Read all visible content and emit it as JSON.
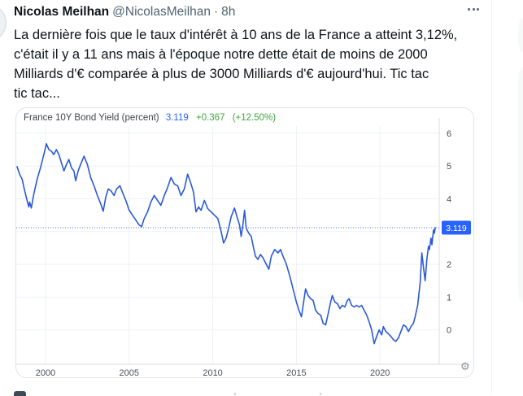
{
  "tweet": {
    "author": "Nicolas Meilhan",
    "handle": "@NicolasMeilhan",
    "separator": "·",
    "time": "8h",
    "text_lines": [
      "La dernière fois que le taux d'intérêt à 10 ans de la France a atteint 3,12%,",
      "c'était il y a 11 ans mais à l'époque notre dette était de moins de 2000",
      "Milliards d'€ comparée à plus de 3000 Milliards d'€ aujourd'hui. Tic tac",
      "tic tac..."
    ],
    "icons": {
      "more": "more-options-dots",
      "avatar": "partial-avatar-circle"
    }
  },
  "chart": {
    "header": {
      "title": "France 10Y Bond Yield (percent)",
      "value": "3.119",
      "change": "+0.367",
      "change_pct": "(+12.50%)"
    },
    "badge_label": "3.119",
    "gear_icon": "⚙",
    "colors": {
      "line": "#2b59d8",
      "value_text": "#2962ff",
      "change_text": "#3fa33f",
      "badge_bg": "#2962ff",
      "badge_text": "#ffffff",
      "grid": "#eef1f6",
      "boundary": "#d9dee5",
      "tick_text": "#4b4f57",
      "dotted": "#2962ff"
    }
  },
  "chart_data": {
    "type": "line",
    "title": "France 10Y Bond Yield (percent)",
    "ylabel": "percent",
    "legend": false,
    "grid": true,
    "y_axis_position": "right",
    "last_value": 3.119,
    "change": 0.367,
    "change_pct": "+12.50%",
    "reference_line": 3.119,
    "x_ticks": [
      2000,
      2005,
      2010,
      2015,
      2020
    ],
    "y_ticks": [
      0,
      1,
      2,
      3,
      4,
      5,
      6
    ],
    "y_tick_labels_visible": [
      0,
      1,
      2,
      4,
      5,
      6
    ],
    "x_range": [
      1998.3,
      2023.54
    ],
    "y_range": [
      -1.05,
      6.22
    ],
    "series": [
      {
        "name": "France 10Y Bond Yield",
        "points": [
          [
            1998.3,
            4.98
          ],
          [
            1998.45,
            4.75
          ],
          [
            1998.6,
            4.6
          ],
          [
            1998.75,
            4.25
          ],
          [
            1998.9,
            3.95
          ],
          [
            1999.0,
            3.75
          ],
          [
            1999.05,
            3.9
          ],
          [
            1999.15,
            3.72
          ],
          [
            1999.3,
            4.15
          ],
          [
            1999.5,
            4.6
          ],
          [
            1999.7,
            4.95
          ],
          [
            1999.9,
            5.35
          ],
          [
            2000.05,
            5.68
          ],
          [
            2000.2,
            5.5
          ],
          [
            2000.35,
            5.45
          ],
          [
            2000.5,
            5.35
          ],
          [
            2000.65,
            5.5
          ],
          [
            2000.8,
            5.35
          ],
          [
            2000.95,
            5.1
          ],
          [
            2001.1,
            4.85
          ],
          [
            2001.25,
            5.05
          ],
          [
            2001.4,
            5.2
          ],
          [
            2001.55,
            4.95
          ],
          [
            2001.7,
            4.85
          ],
          [
            2001.8,
            4.55
          ],
          [
            2001.95,
            4.85
          ],
          [
            2002.1,
            5.05
          ],
          [
            2002.3,
            5.3
          ],
          [
            2002.5,
            5.05
          ],
          [
            2002.7,
            4.65
          ],
          [
            2002.9,
            4.4
          ],
          [
            2003.1,
            4.1
          ],
          [
            2003.3,
            3.85
          ],
          [
            2003.45,
            3.62
          ],
          [
            2003.6,
            4.05
          ],
          [
            2003.75,
            4.3
          ],
          [
            2003.9,
            4.25
          ],
          [
            2004.1,
            4.1
          ],
          [
            2004.25,
            4.3
          ],
          [
            2004.45,
            4.4
          ],
          [
            2004.6,
            4.2
          ],
          [
            2004.8,
            3.95
          ],
          [
            2005.0,
            3.65
          ],
          [
            2005.2,
            3.5
          ],
          [
            2005.4,
            3.35
          ],
          [
            2005.6,
            3.2
          ],
          [
            2005.75,
            3.15
          ],
          [
            2005.9,
            3.4
          ],
          [
            2006.1,
            3.6
          ],
          [
            2006.3,
            3.9
          ],
          [
            2006.5,
            4.1
          ],
          [
            2006.7,
            3.95
          ],
          [
            2006.9,
            3.8
          ],
          [
            2007.1,
            4.1
          ],
          [
            2007.3,
            4.35
          ],
          [
            2007.5,
            4.65
          ],
          [
            2007.7,
            4.45
          ],
          [
            2007.9,
            4.4
          ],
          [
            2008.1,
            4.1
          ],
          [
            2008.3,
            4.3
          ],
          [
            2008.5,
            4.75
          ],
          [
            2008.7,
            4.45
          ],
          [
            2008.85,
            4.2
          ],
          [
            2009.0,
            3.6
          ],
          [
            2009.15,
            3.75
          ],
          [
            2009.3,
            3.65
          ],
          [
            2009.5,
            3.95
          ],
          [
            2009.7,
            3.7
          ],
          [
            2009.9,
            3.6
          ],
          [
            2010.1,
            3.5
          ],
          [
            2010.3,
            3.4
          ],
          [
            2010.5,
            3.0
          ],
          [
            2010.65,
            2.65
          ],
          [
            2010.8,
            2.8
          ],
          [
            2010.95,
            3.1
          ],
          [
            2011.1,
            3.45
          ],
          [
            2011.3,
            3.72
          ],
          [
            2011.45,
            3.45
          ],
          [
            2011.6,
            3.2
          ],
          [
            2011.7,
            2.85
          ],
          [
            2011.8,
            3.2
          ],
          [
            2011.9,
            3.65
          ],
          [
            2012.0,
            3.1
          ],
          [
            2012.15,
            2.95
          ],
          [
            2012.3,
            2.85
          ],
          [
            2012.4,
            2.6
          ],
          [
            2012.55,
            2.25
          ],
          [
            2012.7,
            2.15
          ],
          [
            2012.85,
            2.3
          ],
          [
            2013.0,
            2.2
          ],
          [
            2013.15,
            2.05
          ],
          [
            2013.35,
            1.85
          ],
          [
            2013.5,
            2.25
          ],
          [
            2013.7,
            2.45
          ],
          [
            2013.9,
            2.35
          ],
          [
            2014.05,
            2.45
          ],
          [
            2014.2,
            2.25
          ],
          [
            2014.4,
            2.0
          ],
          [
            2014.6,
            1.65
          ],
          [
            2014.8,
            1.25
          ],
          [
            2015.0,
            0.85
          ],
          [
            2015.15,
            0.6
          ],
          [
            2015.3,
            0.4
          ],
          [
            2015.45,
            0.9
          ],
          [
            2015.55,
            1.25
          ],
          [
            2015.7,
            1.05
          ],
          [
            2015.85,
            0.95
          ],
          [
            2016.0,
            0.9
          ],
          [
            2016.15,
            0.6
          ],
          [
            2016.3,
            0.5
          ],
          [
            2016.45,
            0.45
          ],
          [
            2016.6,
            0.2
          ],
          [
            2016.75,
            0.15
          ],
          [
            2016.9,
            0.5
          ],
          [
            2017.05,
            0.85
          ],
          [
            2017.15,
            1.05
          ],
          [
            2017.3,
            0.85
          ],
          [
            2017.45,
            0.8
          ],
          [
            2017.6,
            0.65
          ],
          [
            2017.75,
            0.75
          ],
          [
            2017.9,
            0.7
          ],
          [
            2018.05,
            0.9
          ],
          [
            2018.15,
            0.95
          ],
          [
            2018.3,
            0.75
          ],
          [
            2018.45,
            0.7
          ],
          [
            2018.6,
            0.75
          ],
          [
            2018.75,
            0.7
          ],
          [
            2018.9,
            0.75
          ],
          [
            2019.05,
            0.6
          ],
          [
            2019.2,
            0.45
          ],
          [
            2019.35,
            0.25
          ],
          [
            2019.5,
            0.0
          ],
          [
            2019.65,
            -0.42
          ],
          [
            2019.8,
            -0.2
          ],
          [
            2019.95,
            0.0
          ],
          [
            2020.1,
            -0.15
          ],
          [
            2020.2,
            0.1
          ],
          [
            2020.35,
            -0.05
          ],
          [
            2020.5,
            -0.12
          ],
          [
            2020.65,
            -0.2
          ],
          [
            2020.8,
            -0.3
          ],
          [
            2020.95,
            -0.35
          ],
          [
            2021.1,
            -0.25
          ],
          [
            2021.25,
            -0.05
          ],
          [
            2021.4,
            0.15
          ],
          [
            2021.55,
            0.1
          ],
          [
            2021.7,
            -0.05
          ],
          [
            2021.85,
            0.1
          ],
          [
            2022.0,
            0.2
          ],
          [
            2022.1,
            0.4
          ],
          [
            2022.25,
            0.75
          ],
          [
            2022.4,
            1.45
          ],
          [
            2022.5,
            2.35
          ],
          [
            2022.6,
            1.9
          ],
          [
            2022.7,
            1.5
          ],
          [
            2022.8,
            2.15
          ],
          [
            2022.9,
            2.55
          ],
          [
            2022.95,
            2.45
          ],
          [
            2023.05,
            2.8
          ],
          [
            2023.1,
            2.6
          ],
          [
            2023.2,
            3.05
          ],
          [
            2023.25,
            2.95
          ],
          [
            2023.3,
            3.119
          ]
        ]
      }
    ]
  }
}
